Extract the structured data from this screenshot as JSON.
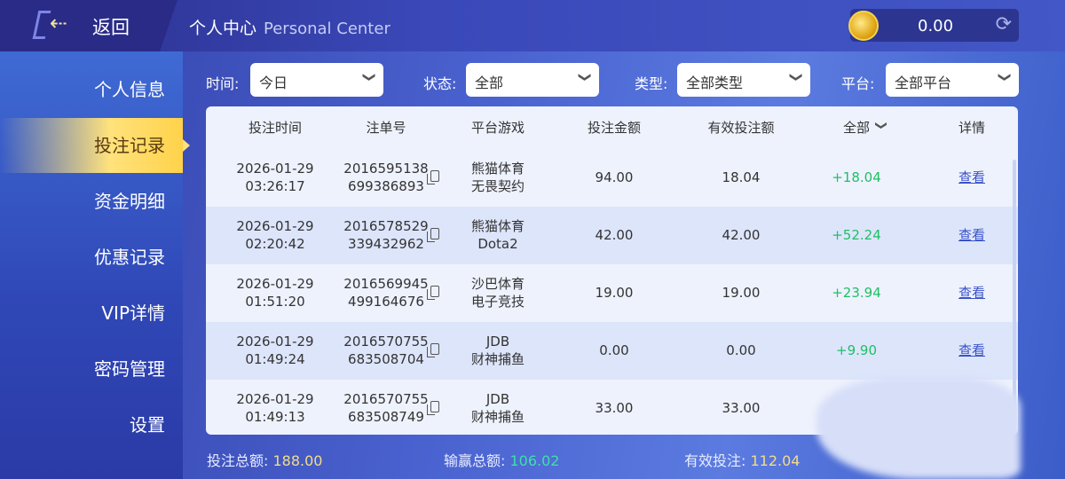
{
  "header": {
    "back_label": "返回",
    "title": "个人中心",
    "title_en": "Personal Center",
    "balance": "0.00"
  },
  "sidebar": {
    "items": [
      {
        "label": "个人信息"
      },
      {
        "label": "投注记录",
        "active": true
      },
      {
        "label": "资金明细"
      },
      {
        "label": "优惠记录"
      },
      {
        "label": "VIP详情"
      },
      {
        "label": "密码管理"
      },
      {
        "label": "设置"
      }
    ]
  },
  "filters": [
    {
      "label": "时间:",
      "value": "今日"
    },
    {
      "label": "状态:",
      "value": "全部"
    },
    {
      "label": "类型:",
      "value": "全部类型"
    },
    {
      "label": "平台:",
      "value": "全部平台"
    }
  ],
  "table": {
    "columns": [
      "投注时间",
      "注单号",
      "平台游戏",
      "投注金额",
      "有效投注额",
      "全部",
      "详情"
    ],
    "rows": [
      {
        "date": "2026-01-29",
        "time": "03:26:17",
        "id1": "2016595138",
        "id2": "699386893",
        "platform": "熊猫体育",
        "game": "无畏契约",
        "amount": "94.00",
        "valid": "18.04",
        "result": "+18.04",
        "detail": "查看"
      },
      {
        "date": "2026-01-29",
        "time": "02:20:42",
        "id1": "2016578529",
        "id2": "339432962",
        "platform": "熊猫体育",
        "game": "Dota2",
        "amount": "42.00",
        "valid": "42.00",
        "result": "+52.24",
        "detail": "查看"
      },
      {
        "date": "2026-01-29",
        "time": "01:51:20",
        "id1": "2016569945",
        "id2": "499164676",
        "platform": "沙巴体育",
        "game": "电子竞技",
        "amount": "19.00",
        "valid": "19.00",
        "result": "+23.94",
        "detail": "查看"
      },
      {
        "date": "2026-01-29",
        "time": "01:49:24",
        "id1": "2016570755",
        "id2": "683508704",
        "platform": "JDB",
        "game": "财神捕鱼",
        "amount": "0.00",
        "valid": "0.00",
        "result": "+9.90",
        "detail": "查看"
      },
      {
        "date": "2026-01-29",
        "time": "01:49:13",
        "id1": "2016570755",
        "id2": "683508749",
        "platform": "JDB",
        "game": "财神捕鱼",
        "amount": "33.00",
        "valid": "33.00",
        "result": "",
        "detail": ""
      }
    ]
  },
  "footer": {
    "total_bet_label": "投注总额:",
    "total_bet": "188.00",
    "win_loss_label": "输赢总额:",
    "win_loss": "106.02",
    "valid_label": "有效投注:",
    "valid": "112.04"
  },
  "colors": {
    "accent": "#ffe27c",
    "positive": "#1fbf66",
    "win_loss": "#3ee0a8",
    "valid": "#f2dc8a"
  }
}
